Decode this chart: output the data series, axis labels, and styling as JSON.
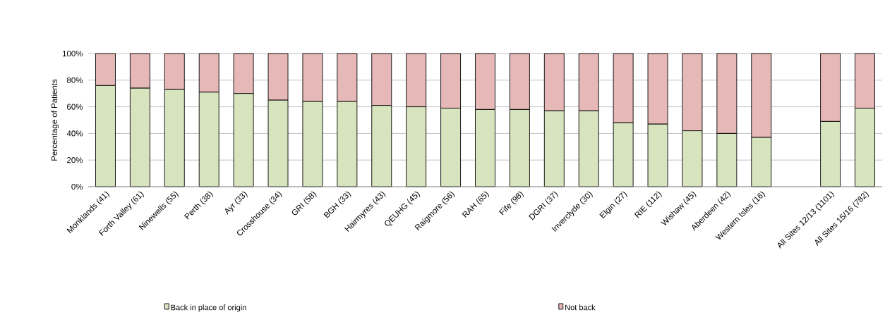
{
  "chart_data": {
    "type": "bar",
    "stacked": true,
    "ylabel": "Percentage of Patients",
    "categories": [
      "Monklands (41)",
      "Forth Valley (61)",
      "Ninewells (55)",
      "Perth (38)",
      "Ayr (33)",
      "Crosshouse (34)",
      "GRI (58)",
      "BGH (33)",
      "Hairmyres (43)",
      "QEUHG (45)",
      "Raigmore (56)",
      "RAH (65)",
      "Fife (98)",
      "DGRI (37)",
      "Inverclyde (30)",
      "Elgin (27)",
      "RIE (112)",
      "Wishaw (45)",
      "Aberdeen (42)",
      "Western Isles (16)",
      null,
      "All Sites 12/13 (1101)",
      "All Sites 15/16 (782)"
    ],
    "series": [
      {
        "name": "Back in place of origin",
        "color": "#d7e4bd",
        "values": [
          76,
          74,
          73,
          71,
          70,
          65,
          64,
          64,
          61,
          60,
          59,
          58,
          58,
          57,
          57,
          48,
          47,
          42,
          40,
          37,
          null,
          49,
          59
        ]
      },
      {
        "name": "Not back",
        "color": "#e6b9b8",
        "values": [
          24,
          26,
          27,
          29,
          30,
          35,
          36,
          36,
          39,
          40,
          41,
          42,
          42,
          43,
          43,
          52,
          53,
          58,
          60,
          63,
          null,
          51,
          41
        ]
      }
    ],
    "ylim": [
      0,
      100
    ],
    "yticks": [
      {
        "value": 0,
        "label": "0%"
      },
      {
        "value": 20,
        "label": "20%"
      },
      {
        "value": 40,
        "label": "40%"
      },
      {
        "value": 60,
        "label": "60%"
      },
      {
        "value": 80,
        "label": "80%"
      },
      {
        "value": 100,
        "label": "100%"
      }
    ],
    "grid": "y",
    "legend": "bottom"
  }
}
